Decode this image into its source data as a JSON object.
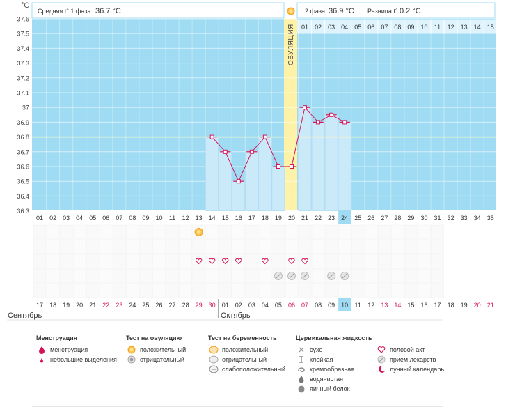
{
  "colors": {
    "sky": "#9fdcf3",
    "bar_fill": "#cbeaf9",
    "bar_edge": "#a9d6ef",
    "line": "#d4145a",
    "ovulation": "#fdf2a8",
    "phase_header": "#dff3fd",
    "highlight_day": "#9fdcf3",
    "weekend": "#d4145a",
    "coverline": "#fff6c8"
  },
  "header": {
    "unit_label": "°C",
    "phase1_label": "Средняя t° 1 фаза",
    "phase1_value": "36.7 °C",
    "phase2_label": "2 фаза",
    "phase2_value": "36.9 °C",
    "diff_label": "Разница t°",
    "diff_value": "0.2 °C",
    "ovulation_label": "ОВУЛЯЦИЯ",
    "ovulation_icon": "sun-icon"
  },
  "chart_data": {
    "type": "line",
    "title": "",
    "xlabel": "",
    "ylabel": "°C",
    "ylim": [
      36.3,
      37.6
    ],
    "y_ticks": [
      "37.6",
      "37.5",
      "37.4",
      "37.3",
      "37.2",
      "37.1",
      "37",
      "36.9",
      "36.8",
      "36.7",
      "36.6",
      "36.5",
      "36.4",
      "36.3"
    ],
    "cycle_days": [
      "01",
      "02",
      "03",
      "04",
      "05",
      "06",
      "07",
      "08",
      "09",
      "10",
      "11",
      "12",
      "13",
      "14",
      "15",
      "16",
      "17",
      "18",
      "19",
      "20",
      "21",
      "22",
      "23",
      "24",
      "25",
      "26",
      "27",
      "28",
      "29",
      "30",
      "31",
      "32",
      "33",
      "34",
      "35"
    ],
    "phase2_days": [
      "01",
      "02",
      "03",
      "04",
      "05",
      "06",
      "07",
      "08",
      "09",
      "10",
      "11",
      "12",
      "13",
      "14",
      "15"
    ],
    "ovulation_day": 20,
    "current_day": 24,
    "coverline": 36.8,
    "grid": true,
    "series": [
      {
        "points": [
          {
            "day": 14,
            "temp": 36.8
          },
          {
            "day": 15,
            "temp": 36.7
          },
          {
            "day": 16,
            "temp": 36.5
          },
          {
            "day": 17,
            "temp": 36.7
          },
          {
            "day": 18,
            "temp": 36.8
          },
          {
            "day": 19,
            "temp": 36.6
          },
          {
            "day": 20,
            "temp": 36.6
          },
          {
            "day": 21,
            "temp": 37.0
          },
          {
            "day": 22,
            "temp": 36.9
          },
          {
            "day": 23,
            "temp": 36.95
          },
          {
            "day": 24,
            "temp": 36.9
          }
        ]
      }
    ],
    "ovulation_test_positive_days": [
      13
    ],
    "intercourse_days": [
      13,
      14,
      15,
      16,
      18,
      20,
      21
    ],
    "medication_days": [
      19,
      20,
      21,
      23,
      24
    ]
  },
  "calendar": {
    "dates": [
      "17",
      "18",
      "19",
      "20",
      "21",
      "22",
      "23",
      "24",
      "25",
      "26",
      "27",
      "28",
      "29",
      "30",
      "01",
      "02",
      "03",
      "04",
      "05",
      "06",
      "07",
      "08",
      "09",
      "10",
      "11",
      "12",
      "13",
      "14",
      "15",
      "16",
      "17",
      "18",
      "19",
      "20",
      "21"
    ],
    "weekend_dates": [
      6,
      7,
      13,
      14,
      20,
      21,
      27,
      28,
      34,
      35
    ],
    "highlight_index": 24,
    "month_start_index": 15,
    "month1": "Сентябрь",
    "month2": "Октябрь"
  },
  "legend": {
    "groups": [
      {
        "title": "Менструация",
        "items": [
          {
            "icon": "drop-icon",
            "label": "менструация"
          },
          {
            "icon": "small-drop-icon",
            "label": "небольшие выделения"
          }
        ]
      },
      {
        "title": "Тест на овуляцию",
        "items": [
          {
            "icon": "sun-icon",
            "label": "положительный"
          },
          {
            "icon": "grey-circle-icon",
            "label": "отрицательный"
          }
        ]
      },
      {
        "title": "Тест на беременность",
        "items": [
          {
            "icon": "orange-test-icon",
            "label": "положительный"
          },
          {
            "icon": "grey-test-icon",
            "label": "отрицательный"
          },
          {
            "icon": "faint-test-icon",
            "label": "слабоположительный"
          }
        ]
      },
      {
        "title": "Цервикальная жидкость",
        "items": [
          {
            "icon": "cross-icon",
            "label": "сухо"
          },
          {
            "icon": "sticky-icon",
            "label": "клейкая"
          },
          {
            "icon": "swirl-icon",
            "label": "кремообразная"
          },
          {
            "icon": "water-drop-icon",
            "label": "водянистая"
          },
          {
            "icon": "egg-white-icon",
            "label": "яичный белок"
          }
        ]
      },
      {
        "title": "",
        "items": [
          {
            "icon": "heart-icon",
            "label": "половой акт"
          },
          {
            "icon": "pill-icon",
            "label": "прием лекарств"
          },
          {
            "icon": "moon-icon",
            "label": "лунный календарь"
          }
        ]
      }
    ]
  }
}
